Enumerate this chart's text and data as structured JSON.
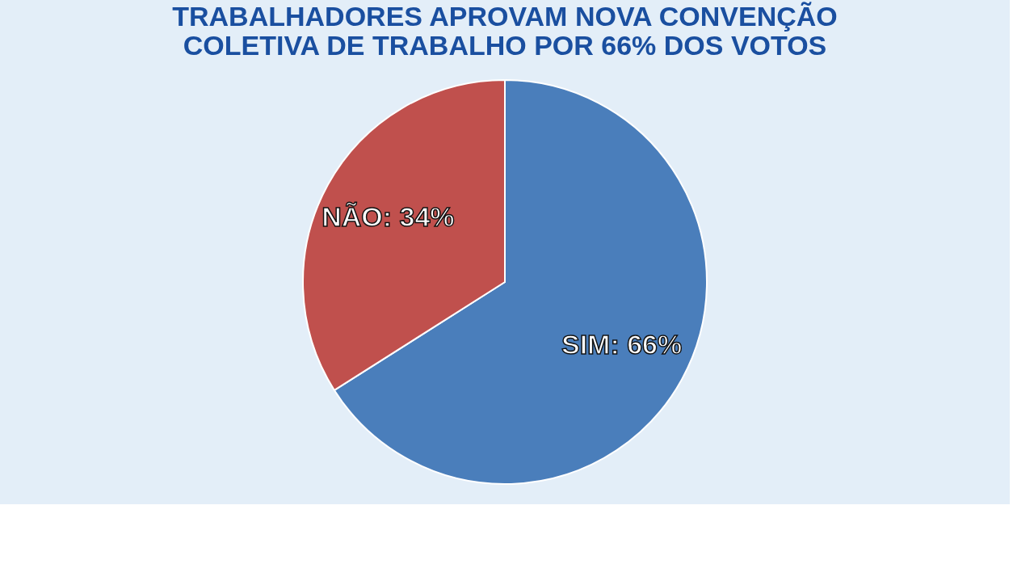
{
  "chart_data": {
    "type": "pie",
    "title": "TRABALHADORES APROVAM NOVA CONVENÇÃO\nCOLETIVA DE TRABALHO POR 66% DOS VOTOS",
    "categories": [
      "SIM",
      "NÃO"
    ],
    "values": [
      66,
      34
    ],
    "colors": [
      "#4a7ebb",
      "#c0504d"
    ],
    "value_labels": [
      "66%",
      "34%"
    ],
    "legend": false
  }
}
